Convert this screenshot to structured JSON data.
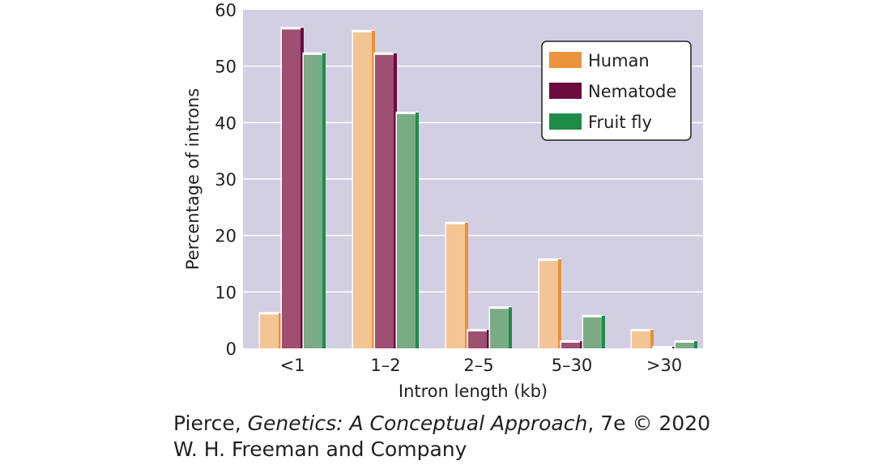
{
  "chart_data": {
    "type": "bar",
    "title": "",
    "xlabel": "Intron length (kb)",
    "ylabel": "Percentage of introns",
    "ylim": [
      0,
      60
    ],
    "yticks": [
      0,
      10,
      20,
      30,
      40,
      50,
      60
    ],
    "categories": [
      "<1",
      "1–2",
      "2–5",
      "5–30",
      ">30"
    ],
    "series": [
      {
        "name": "Human",
        "values": [
          6,
          56,
          22,
          15.5,
          3
        ]
      },
      {
        "name": "Nematode",
        "values": [
          56.5,
          52,
          3,
          1,
          0
        ]
      },
      {
        "name": "Fruit fly",
        "values": [
          52,
          41.5,
          7,
          5.5,
          1
        ]
      }
    ],
    "legend_position": "top-right",
    "grid": true
  },
  "colors": {
    "plot_background": "#d3cfe3",
    "grid": "#ffffff",
    "human_face": "#f4c594",
    "human_side": "#e8913a",
    "nematode_face": "#9e4f72",
    "nematode_side": "#6b0c3c",
    "fly_face": "#7bab84",
    "fly_side": "#1e8c4b",
    "legend_human": "#ea943e",
    "legend_nematode": "#6b0c3c",
    "legend_fly": "#1f8b48"
  },
  "credit": {
    "author": "Pierce, ",
    "book": "Genetics: A Conceptual Approach",
    "edition": ", 7e © 2020",
    "publisher": "W. H. Freeman and Company"
  }
}
